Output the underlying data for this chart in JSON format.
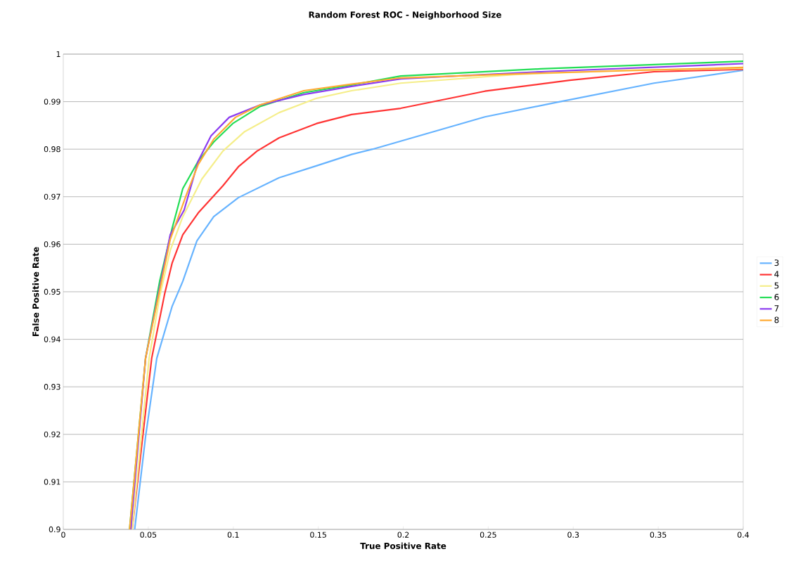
{
  "chart_data": {
    "type": "line",
    "title": "Random Forest ROC - Neighborhood Size",
    "xlabel": "True Positive Rate",
    "ylabel": "False Positive Rate",
    "xlim": [
      0,
      0.4
    ],
    "ylim": [
      0.9,
      1
    ],
    "xticks": [
      0,
      0.05,
      0.1,
      0.15,
      0.2,
      0.25,
      0.3,
      0.35,
      0.4
    ],
    "yticks": [
      0.9,
      0.91,
      0.92,
      0.93,
      0.94,
      0.95,
      0.96,
      0.97,
      0.98,
      0.99,
      1
    ],
    "grid": "y",
    "legend": "right",
    "marker": "none",
    "line_style": "solid",
    "series": [
      {
        "name": "3",
        "color": "#66b3ff",
        "x": [
          0.042,
          0.0484,
          0.055,
          0.064,
          0.0703,
          0.0786,
          0.0885,
          0.103,
          0.127,
          0.1489,
          0.1696,
          0.182,
          0.248,
          0.2896,
          0.3475,
          0.4
        ],
        "values": [
          0.9,
          0.9195,
          0.936,
          0.9469,
          0.9522,
          0.9607,
          0.9658,
          0.9698,
          0.974,
          0.9765,
          0.9789,
          0.98,
          0.9868,
          0.9898,
          0.9939,
          0.9966
        ]
      },
      {
        "name": "4",
        "color": "#ff3333",
        "x": [
          0.0405,
          0.052,
          0.0596,
          0.064,
          0.0703,
          0.0794,
          0.0939,
          0.103,
          0.114,
          0.127,
          0.149,
          0.1696,
          0.1985,
          0.248,
          0.298,
          0.3475,
          0.4
        ],
        "values": [
          0.9,
          0.936,
          0.9495,
          0.956,
          0.962,
          0.9666,
          0.9723,
          0.9763,
          0.9796,
          0.9824,
          0.9854,
          0.9873,
          0.9886,
          0.9922,
          0.9945,
          0.9963,
          0.9968
        ]
      },
      {
        "name": "5",
        "color": "#f5ee8a",
        "x": [
          0.0405,
          0.0505,
          0.0567,
          0.0629,
          0.0703,
          0.0815,
          0.0939,
          0.1067,
          0.127,
          0.149,
          0.1696,
          0.1985,
          0.265,
          0.331,
          0.4
        ],
        "values": [
          0.9,
          0.936,
          0.949,
          0.9587,
          0.9658,
          0.9737,
          0.9796,
          0.9837,
          0.9877,
          0.9907,
          0.9923,
          0.9939,
          0.9957,
          0.9966,
          0.997
        ]
      },
      {
        "name": "6",
        "color": "#22dd55",
        "x": [
          0.039,
          0.0484,
          0.0567,
          0.064,
          0.0703,
          0.0794,
          0.0885,
          0.0997,
          0.1158,
          0.1415,
          0.1696,
          0.1985,
          0.281,
          0.4
        ],
        "values": [
          0.9,
          0.936,
          0.9522,
          0.9633,
          0.9717,
          0.9775,
          0.9815,
          0.9854,
          0.989,
          0.9919,
          0.9935,
          0.9954,
          0.9969,
          0.9985
        ]
      },
      {
        "name": "7",
        "color": "#8c3cf0",
        "x": [
          0.0397,
          0.0484,
          0.0629,
          0.0711,
          0.0794,
          0.0869,
          0.0976,
          0.1158,
          0.1415,
          0.1696,
          0.1985,
          0.281,
          0.4
        ],
        "values": [
          0.9,
          0.936,
          0.962,
          0.9672,
          0.9775,
          0.9828,
          0.9867,
          0.9893,
          0.9915,
          0.9932,
          0.9948,
          0.9963,
          0.998
        ]
      },
      {
        "name": "8",
        "color": "#ffaa33",
        "x": [
          0.039,
          0.0484,
          0.0629,
          0.0724,
          0.0794,
          0.0885,
          0.1013,
          0.1158,
          0.1415,
          0.1696,
          0.1985,
          0.281,
          0.4
        ],
        "values": [
          0.9,
          0.936,
          0.961,
          0.9704,
          0.9768,
          0.9821,
          0.9867,
          0.9893,
          0.9923,
          0.9937,
          0.995,
          0.996,
          0.9972
        ]
      }
    ]
  }
}
